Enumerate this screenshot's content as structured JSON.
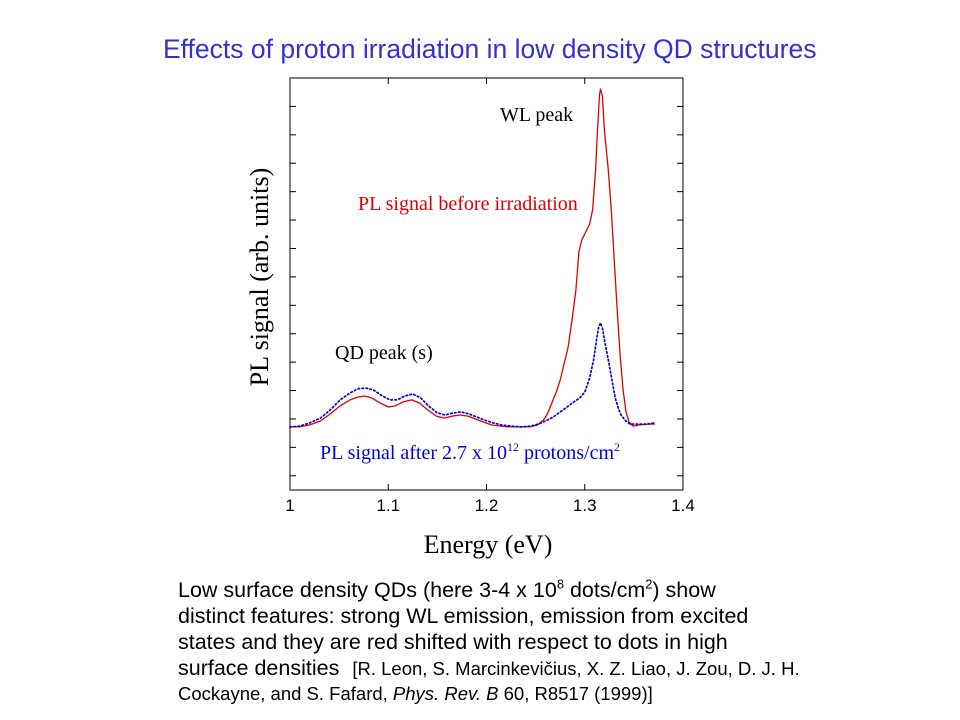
{
  "slide": {
    "title": "Effects of proton irradiation in low density QD structures",
    "title_color": "#3333cc",
    "caption": {
      "line1_a": "Low surface density QDs (here 3-4 x 10",
      "line1_sup1": "8",
      "line1_b": " dots/cm",
      "line1_sup2": "2",
      "line1_c": ") show",
      "line2": "distinct features: strong WL emission, emission from excited",
      "line3": "states and they are red shifted with respect to dots in high",
      "line4": "surface densities",
      "reference_a": "[R. Leon, S. Marcinkevičius, X. Z. Liao, J. Zou, D. J. H.",
      "reference_b": "Cockayne, and S. Fafard, ",
      "reference_journal": "Phys. Rev. B",
      "reference_c": " 60, R8517 (1999)]"
    }
  },
  "chart_data": {
    "type": "line",
    "xlabel": "Energy (eV)",
    "ylabel": "PL signal (arb. units)",
    "xlim": [
      1,
      1.4
    ],
    "ylim": [
      -1.5,
      13
    ],
    "xticks": [
      1,
      1.1,
      1.2,
      1.3,
      1.4
    ],
    "xtick_labels": [
      "1",
      "1.1",
      "1.2",
      "1.3",
      "1.4"
    ],
    "grid": false,
    "legend": "none",
    "annotations": {
      "wl_peak": "WL peak",
      "qd_peak": "QD peak (s)",
      "wl_peak_color": "#000000",
      "qd_peak_color": "#000000"
    },
    "series": [
      {
        "name": "PL signal before irradiation",
        "color": "#dd0000",
        "line_style": "solid",
        "x": [
          1.0,
          1.01,
          1.02,
          1.031,
          1.041,
          1.051,
          1.061,
          1.069,
          1.076,
          1.083,
          1.092,
          1.1,
          1.107,
          1.115,
          1.124,
          1.132,
          1.14,
          1.149,
          1.157,
          1.165,
          1.173,
          1.181,
          1.189,
          1.197,
          1.205,
          1.214,
          1.224,
          1.234,
          1.244,
          1.252,
          1.258,
          1.262,
          1.267,
          1.271,
          1.275,
          1.279,
          1.283,
          1.287,
          1.291,
          1.294,
          1.297,
          1.301,
          1.305,
          1.308,
          1.311,
          1.313,
          1.315,
          1.316,
          1.318,
          1.32,
          1.324,
          1.327,
          1.33,
          1.333,
          1.336,
          1.339,
          1.342,
          1.345,
          1.349,
          1.356,
          1.364,
          1.371
        ],
        "y": [
          0.72,
          0.72,
          0.79,
          0.93,
          1.18,
          1.46,
          1.67,
          1.77,
          1.81,
          1.74,
          1.56,
          1.42,
          1.46,
          1.6,
          1.67,
          1.56,
          1.32,
          1.1,
          1.03,
          1.1,
          1.14,
          1.1,
          1.0,
          0.89,
          0.79,
          0.75,
          0.72,
          0.72,
          0.72,
          0.79,
          0.96,
          1.18,
          1.6,
          1.95,
          2.37,
          2.94,
          3.5,
          4.48,
          5.54,
          6.88,
          7.3,
          7.58,
          7.86,
          8.36,
          9.76,
          11.17,
          12.4,
          12.61,
          12.37,
          11.17,
          9.76,
          8.36,
          6.6,
          4.84,
          3.25,
          2.02,
          1.25,
          0.89,
          0.75,
          0.79,
          0.82,
          0.82
        ]
      },
      {
        "name_parts": {
          "text": "PL signal after 2.7 x 10",
          "exponent": "12",
          "unit": " protons/cm",
          "unit_exponent": "2"
        },
        "color": "#0000dd",
        "line_style": "dotted",
        "x": [
          1.0,
          1.01,
          1.02,
          1.031,
          1.041,
          1.051,
          1.061,
          1.069,
          1.077,
          1.085,
          1.094,
          1.102,
          1.109,
          1.117,
          1.125,
          1.133,
          1.141,
          1.15,
          1.158,
          1.166,
          1.174,
          1.182,
          1.19,
          1.198,
          1.207,
          1.215,
          1.225,
          1.235,
          1.245,
          1.253,
          1.26,
          1.268,
          1.275,
          1.282,
          1.289,
          1.295,
          1.3,
          1.305,
          1.309,
          1.312,
          1.314,
          1.316,
          1.318,
          1.321,
          1.325,
          1.328,
          1.331,
          1.334,
          1.337,
          1.341,
          1.346,
          1.356,
          1.364,
          1.371
        ],
        "y": [
          0.72,
          0.75,
          0.86,
          1.03,
          1.32,
          1.67,
          1.91,
          2.06,
          2.09,
          2.02,
          1.81,
          1.67,
          1.67,
          1.81,
          1.88,
          1.74,
          1.46,
          1.21,
          1.14,
          1.21,
          1.25,
          1.18,
          1.07,
          0.96,
          0.86,
          0.79,
          0.75,
          0.72,
          0.75,
          0.82,
          0.93,
          1.07,
          1.25,
          1.42,
          1.6,
          1.74,
          1.95,
          2.44,
          3.08,
          3.78,
          4.2,
          4.38,
          4.2,
          3.6,
          2.9,
          2.3,
          1.74,
          1.39,
          1.14,
          0.96,
          0.82,
          0.82,
          0.82,
          0.86
        ]
      }
    ]
  }
}
